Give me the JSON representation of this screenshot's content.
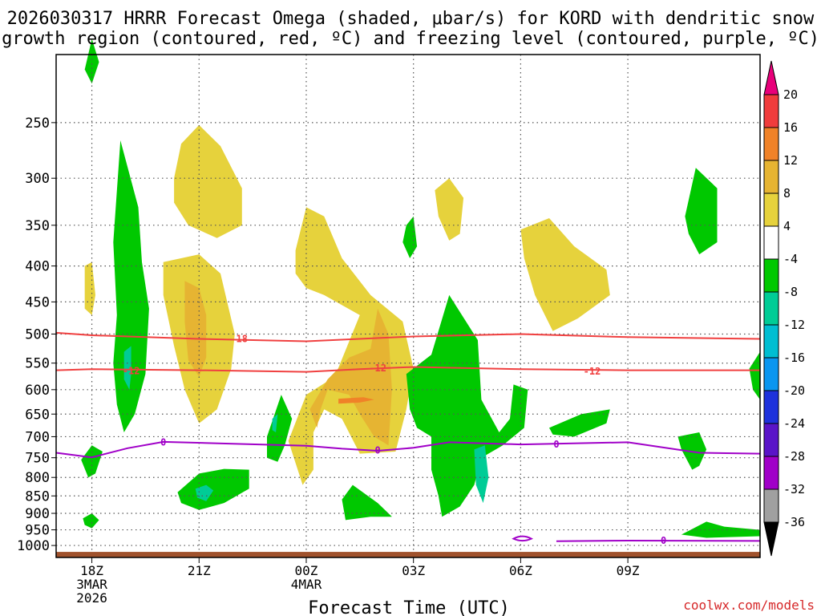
{
  "title_line1": "2026030317 HRRR Forecast Omega (shaded, μbar/s) for KORD with dendritic snow",
  "title_line2": "growth region (contoured, red, ºC) and freezing level (contoured, purple, ºC)",
  "credit": "coolwx.com/models",
  "chart_data": {
    "type": "contour-timeheight",
    "title": "2026030317 HRRR Forecast Omega (shaded, μbar/s) for KORD with dendritic snow growth region (contoured, red, ºC) and freezing level (contoured, purple, ºC)",
    "xlabel": "Forecast Time (UTC)",
    "ylabel": "",
    "xlim_hours": [
      -1,
      18.7
    ],
    "ylim_hpa": [
      1040,
      200
    ],
    "grid": true,
    "yticks": [
      250,
      300,
      350,
      400,
      450,
      500,
      550,
      600,
      650,
      700,
      750,
      800,
      850,
      900,
      950,
      1000
    ],
    "xticks": [
      {
        "hour": 0,
        "label": "18Z",
        "sub1": "3MAR",
        "sub2": "2026"
      },
      {
        "hour": 3,
        "label": "21Z",
        "sub1": "",
        "sub2": ""
      },
      {
        "hour": 6,
        "label": "00Z",
        "sub1": "4MAR",
        "sub2": ""
      },
      {
        "hour": 9,
        "label": "03Z",
        "sub1": "",
        "sub2": ""
      },
      {
        "hour": 12,
        "label": "06Z",
        "sub1": "",
        "sub2": ""
      },
      {
        "hour": 15,
        "label": "09Z",
        "sub1": "",
        "sub2": ""
      }
    ],
    "colorbar": {
      "levels": [
        20,
        16,
        12,
        8,
        4,
        -4,
        -8,
        -12,
        -16,
        -20,
        -24,
        -28,
        -32,
        -36
      ],
      "colors": [
        "#e8007a",
        "#f03c3c",
        "#f08228",
        "#e6b432",
        "#e6d23c",
        "#ffffff",
        "#00c800",
        "#00cc96",
        "#00bed2",
        "#0a96f0",
        "#1e32dc",
        "#5a14c8",
        "#a000c8",
        "#a0a0a0",
        "#000000"
      ]
    },
    "series": [
      {
        "name": "dendritic -12ºC contour",
        "color": "#f04040",
        "label": "-12",
        "points": [
          [
            -1,
            563
          ],
          [
            0,
            561
          ],
          [
            3,
            563
          ],
          [
            6,
            566
          ],
          [
            7.5,
            561
          ],
          [
            9,
            557
          ],
          [
            12,
            561
          ],
          [
            15,
            563
          ],
          [
            18.7,
            563
          ]
        ]
      },
      {
        "name": "dendritic -18ºC contour",
        "color": "#f04040",
        "label": "18",
        "points": [
          [
            -1,
            498
          ],
          [
            0,
            502
          ],
          [
            3,
            508
          ],
          [
            6,
            512
          ],
          [
            9,
            504
          ],
          [
            12,
            500
          ],
          [
            15,
            505
          ],
          [
            18.7,
            508
          ]
        ]
      },
      {
        "name": "freezing level 0ºC contour",
        "color": "#a000c8",
        "label": "0",
        "points": [
          [
            -1,
            738
          ],
          [
            0,
            749
          ],
          [
            1,
            727
          ],
          [
            2,
            712
          ],
          [
            6,
            721
          ],
          [
            7,
            728
          ],
          [
            8,
            733
          ],
          [
            9,
            726
          ],
          [
            10,
            713
          ],
          [
            12,
            718
          ],
          [
            15,
            713
          ],
          [
            17,
            738
          ],
          [
            18.7,
            740
          ]
        ]
      }
    ],
    "contour_labels": [
      {
        "series": "dendritic -18ºC contour",
        "hour": 4.2,
        "hpa": 508,
        "text": "18"
      },
      {
        "series": "dendritic -12ºC contour",
        "hour": 1.1,
        "hpa": 564,
        "text": "-12"
      },
      {
        "series": "dendritic -12ºC contour",
        "hour": 8.0,
        "hpa": 559,
        "text": "-12"
      },
      {
        "series": "dendritic -12ºC contour",
        "hour": 14.0,
        "hpa": 565,
        "text": "-12"
      },
      {
        "series": "freezing level 0ºC contour",
        "hour": 2.0,
        "hpa": 713,
        "text": "0"
      },
      {
        "series": "freezing level 0ºC contour",
        "hour": 8.0,
        "hpa": 732,
        "text": "0"
      },
      {
        "series": "freezing level 0ºC contour",
        "hour": 13.0,
        "hpa": 718,
        "text": "0"
      },
      {
        "series": "freezing level 0ºC contour",
        "hour": 16.0,
        "hpa": 984,
        "text": "0"
      }
    ],
    "omega_regions": [
      {
        "name": "omega-positive-4-8",
        "color": "#e6d23c",
        "pts": [
          [
            2.3,
            300
          ],
          [
            2.5,
            268
          ],
          [
            3,
            252
          ],
          [
            3.6,
            270
          ],
          [
            4.2,
            310
          ],
          [
            4.2,
            350
          ],
          [
            3.5,
            365
          ],
          [
            2.7,
            350
          ],
          [
            2.3,
            325
          ]
        ]
      },
      {
        "name": "omega-positive-4-8",
        "color": "#e6d23c",
        "pts": [
          [
            2,
            395
          ],
          [
            3,
            385
          ],
          [
            3.6,
            410
          ],
          [
            4,
            500
          ],
          [
            3.9,
            560
          ],
          [
            3.5,
            640
          ],
          [
            3,
            670
          ],
          [
            2.6,
            600
          ],
          [
            2.3,
            520
          ],
          [
            2,
            440
          ]
        ]
      },
      {
        "name": "omega-positive-4-8",
        "color": "#e6d23c",
        "pts": [
          [
            -0.2,
            400
          ],
          [
            0,
            395
          ],
          [
            0.1,
            440
          ],
          [
            0,
            470
          ],
          [
            -0.2,
            460
          ]
        ]
      },
      {
        "name": "omega-positive-4-8",
        "color": "#e6d23c",
        "pts": [
          [
            5.7,
            380
          ],
          [
            6,
            330
          ],
          [
            6.5,
            340
          ],
          [
            7,
            390
          ],
          [
            7.8,
            440
          ],
          [
            8.7,
            480
          ],
          [
            9,
            560
          ],
          [
            8.8,
            640
          ],
          [
            8.5,
            735
          ],
          [
            7.5,
            740
          ],
          [
            7,
            660
          ],
          [
            6.5,
            640
          ],
          [
            6.2,
            690
          ],
          [
            6.2,
            780
          ],
          [
            5.9,
            820
          ],
          [
            5.5,
            710
          ],
          [
            6,
            610
          ],
          [
            6.8,
            575
          ],
          [
            7.5,
            470
          ],
          [
            6.5,
            440
          ],
          [
            6,
            430
          ],
          [
            5.7,
            410
          ]
        ]
      },
      {
        "name": "omega-positive-4-8",
        "color": "#e6d23c",
        "pts": [
          [
            9.6,
            312
          ],
          [
            10,
            300
          ],
          [
            10.4,
            320
          ],
          [
            10.3,
            360
          ],
          [
            10,
            368
          ],
          [
            9.7,
            340
          ]
        ]
      },
      {
        "name": "omega-positive-4-8",
        "color": "#e6d23c",
        "pts": [
          [
            12,
            355
          ],
          [
            12.8,
            342
          ],
          [
            13.5,
            375
          ],
          [
            14.4,
            405
          ],
          [
            14.5,
            440
          ],
          [
            13.6,
            475
          ],
          [
            12.9,
            495
          ],
          [
            12.4,
            440
          ],
          [
            12.1,
            390
          ]
        ]
      },
      {
        "name": "omega-positive-8-12",
        "color": "#e6b432",
        "pts": [
          [
            2.6,
            420
          ],
          [
            3,
            430
          ],
          [
            3.2,
            470
          ],
          [
            3.2,
            540
          ],
          [
            3,
            575
          ],
          [
            2.7,
            545
          ],
          [
            2.6,
            480
          ]
        ]
      },
      {
        "name": "omega-positive-8-12",
        "color": "#e6b432",
        "pts": [
          [
            7.2,
            540
          ],
          [
            7.8,
            525
          ],
          [
            8,
            460
          ],
          [
            8.3,
            500
          ],
          [
            8.4,
            600
          ],
          [
            8.3,
            720
          ],
          [
            7.9,
            700
          ],
          [
            7.5,
            650
          ],
          [
            7.2,
            610
          ],
          [
            6.6,
            600
          ],
          [
            6.4,
            640
          ],
          [
            6.3,
            680
          ],
          [
            6.1,
            640
          ],
          [
            6.6,
            580
          ]
        ]
      },
      {
        "name": "omega-positive-12-16",
        "color": "#f08228",
        "pts": [
          [
            6.9,
            618
          ],
          [
            7.6,
            615
          ],
          [
            7.9,
            620
          ],
          [
            7.5,
            626
          ],
          [
            6.9,
            628
          ]
        ]
      },
      {
        "name": "omega-negative-4-8",
        "color": "#00c800",
        "pts": [
          [
            0.6,
            370
          ],
          [
            0.8,
            265
          ],
          [
            1.3,
            330
          ],
          [
            1.4,
            395
          ],
          [
            1.6,
            460
          ],
          [
            1.5,
            570
          ],
          [
            1.2,
            650
          ],
          [
            0.9,
            690
          ],
          [
            0.7,
            630
          ],
          [
            0.6,
            550
          ],
          [
            0.7,
            470
          ]
        ]
      },
      {
        "name": "omega-negative-4-8",
        "color": "#00c800",
        "pts": [
          [
            -0.3,
            755
          ],
          [
            0,
            720
          ],
          [
            0.3,
            735
          ],
          [
            0.1,
            790
          ],
          [
            -0.1,
            800
          ]
        ]
      },
      {
        "name": "omega-negative-4-8",
        "color": "#00c800",
        "pts": [
          [
            -0.25,
            915
          ],
          [
            0,
            900
          ],
          [
            0.2,
            920
          ],
          [
            0,
            945
          ],
          [
            -0.2,
            935
          ]
        ]
      },
      {
        "name": "omega-negative-4-8",
        "color": "#00c800",
        "pts": [
          [
            2.4,
            840
          ],
          [
            3,
            790
          ],
          [
            3.7,
            778
          ],
          [
            4.4,
            780
          ],
          [
            4.4,
            830
          ],
          [
            3.7,
            870
          ],
          [
            3,
            890
          ],
          [
            2.5,
            870
          ]
        ]
      },
      {
        "name": "omega-negative-4-8",
        "color": "#00c800",
        "pts": [
          [
            4.9,
            700
          ],
          [
            5.3,
            610
          ],
          [
            5.6,
            660
          ],
          [
            5.4,
            720
          ],
          [
            5.2,
            760
          ],
          [
            4.9,
            750
          ]
        ]
      },
      {
        "name": "omega-negative-4-8",
        "color": "#00c800",
        "pts": [
          [
            7,
            860
          ],
          [
            7.3,
            820
          ],
          [
            8,
            870
          ],
          [
            8.4,
            910
          ],
          [
            7.8,
            910
          ],
          [
            7.1,
            920
          ]
        ]
      },
      {
        "name": "omega-negative-4-8",
        "color": "#00c800",
        "pts": [
          [
            8.8,
            350
          ],
          [
            9,
            340
          ],
          [
            9.1,
            375
          ],
          [
            8.9,
            390
          ],
          [
            8.7,
            370
          ]
        ]
      },
      {
        "name": "omega-negative-4-8",
        "color": "#00c800",
        "pts": [
          [
            8.8,
            570
          ],
          [
            9.5,
            535
          ],
          [
            10,
            440
          ],
          [
            10.8,
            510
          ],
          [
            10.9,
            620
          ],
          [
            11.4,
            690
          ],
          [
            11.7,
            660
          ],
          [
            11.8,
            590
          ],
          [
            12.2,
            600
          ],
          [
            12.1,
            680
          ],
          [
            11.5,
            720
          ],
          [
            10.9,
            750
          ],
          [
            10.7,
            820
          ],
          [
            10.3,
            880
          ],
          [
            9.8,
            910
          ],
          [
            9.7,
            850
          ],
          [
            9.5,
            780
          ],
          [
            9.5,
            700
          ],
          [
            9.1,
            680
          ],
          [
            8.9,
            640
          ]
        ]
      },
      {
        "name": "omega-negative-4-8",
        "color": "#00c800",
        "pts": [
          [
            12.8,
            680
          ],
          [
            13.7,
            650
          ],
          [
            14.5,
            640
          ],
          [
            14.4,
            670
          ],
          [
            13.5,
            700
          ],
          [
            12.9,
            695
          ]
        ]
      },
      {
        "name": "omega-negative-4-8",
        "color": "#00c800",
        "pts": [
          [
            16.4,
            700
          ],
          [
            17,
            690
          ],
          [
            17.2,
            730
          ],
          [
            17,
            770
          ],
          [
            16.8,
            780
          ],
          [
            16.5,
            730
          ]
        ]
      },
      {
        "name": "omega-negative-4-8",
        "color": "#00c800",
        "pts": [
          [
            16.6,
            340
          ],
          [
            16.9,
            290
          ],
          [
            17.5,
            310
          ],
          [
            17.5,
            370
          ],
          [
            17,
            385
          ],
          [
            16.7,
            360
          ]
        ]
      },
      {
        "name": "omega-negative-4-8",
        "color": "#00c800",
        "pts": [
          [
            16.5,
            965
          ],
          [
            17.2,
            925
          ],
          [
            17.7,
            940
          ],
          [
            18.7,
            950
          ],
          [
            18.7,
            970
          ],
          [
            17.2,
            975
          ]
        ]
      },
      {
        "name": "omega-negative-4-8",
        "color": "#00c800",
        "pts": [
          [
            18.4,
            560
          ],
          [
            18.7,
            530
          ],
          [
            18.7,
            620
          ],
          [
            18.5,
            600
          ]
        ]
      },
      {
        "name": "omega-negative-4-8",
        "color": "#00c800",
        "pts": [
          [
            -0.2,
            210
          ],
          [
            0,
            190
          ],
          [
            0.2,
            205
          ],
          [
            0,
            220
          ]
        ]
      },
      {
        "name": "omega-negative-8-12",
        "color": "#00cc96",
        "pts": [
          [
            0.9,
            530
          ],
          [
            1.1,
            520
          ],
          [
            1.1,
            570
          ],
          [
            1.05,
            600
          ],
          [
            0.9,
            580
          ]
        ]
      },
      {
        "name": "omega-negative-8-12",
        "color": "#00cc96",
        "pts": [
          [
            2.9,
            830
          ],
          [
            3.2,
            820
          ],
          [
            3.4,
            835
          ],
          [
            3.2,
            865
          ],
          [
            2.95,
            855
          ]
        ]
      },
      {
        "name": "omega-negative-8-12",
        "color": "#00cc96",
        "pts": [
          [
            5.05,
            660
          ],
          [
            5.2,
            650
          ],
          [
            5.15,
            690
          ],
          [
            5.05,
            685
          ]
        ]
      },
      {
        "name": "omega-negative-8-12",
        "color": "#00cc96",
        "pts": [
          [
            10.7,
            730
          ],
          [
            11,
            720
          ],
          [
            11.1,
            800
          ],
          [
            10.95,
            870
          ],
          [
            10.75,
            820
          ]
        ]
      }
    ]
  }
}
